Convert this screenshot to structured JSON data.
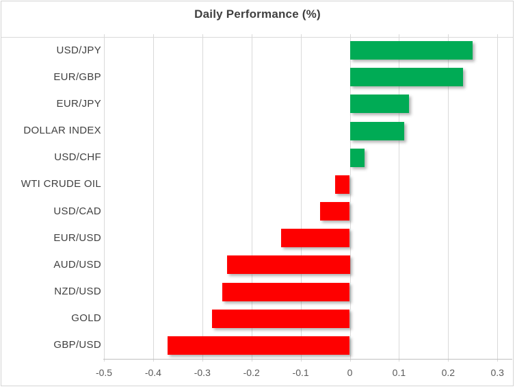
{
  "title": "Daily Performance (%)",
  "colors": {
    "positive": "#00ab55",
    "negative": "#fe0000",
    "gridline": "#d9d9d9",
    "axis_line": "#bfbfbf",
    "border": "#d3d3d3",
    "title_text": "#3f3f3f",
    "category_text": "#404040",
    "tick_text": "#595959"
  },
  "chart_data": {
    "type": "bar",
    "orientation": "horizontal",
    "title": "Daily Performance (%)",
    "categories": [
      "USD/JPY",
      "EUR/GBP",
      "EUR/JPY",
      "DOLLAR INDEX",
      "USD/CHF",
      "WTI CRUDE OIL",
      "USD/CAD",
      "EUR/USD",
      "AUD/USD",
      "NZD/USD",
      "GOLD",
      "GBP/USD"
    ],
    "values": [
      0.25,
      0.23,
      0.12,
      0.11,
      0.03,
      -0.03,
      -0.06,
      -0.14,
      -0.25,
      -0.26,
      -0.28,
      -0.37
    ],
    "series_name": "Daily Performance (%)",
    "xlim": [
      -0.5,
      0.33
    ],
    "x_ticks": [
      -0.5,
      -0.4,
      -0.3,
      -0.2,
      -0.1,
      0,
      0.1,
      0.2,
      0.3
    ],
    "x_tick_labels": [
      "-0.5",
      "-0.4",
      "-0.3",
      "-0.2",
      "-0.1",
      "0",
      "0.1",
      "0.2",
      "0.3"
    ],
    "grid": "vertical",
    "legend": "none",
    "positive_color": "#00ab55",
    "negative_color": "#fe0000"
  }
}
